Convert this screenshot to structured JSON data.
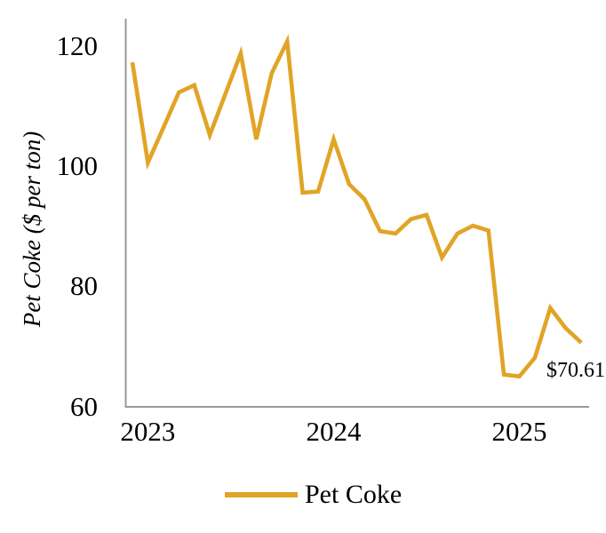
{
  "colors": {
    "line": "#E1A426",
    "axis": "#999999",
    "text": "#000000"
  },
  "annotation": {
    "label": "$70.61"
  },
  "chart_data": {
    "type": "line",
    "title": "",
    "xlabel": "",
    "ylabel": "Pet Coke ($ per ton)",
    "ylim": [
      60,
      125
    ],
    "yticks": [
      120,
      100,
      80,
      60
    ],
    "xticks": [
      {
        "label": "2023",
        "month": "Jan 2023"
      },
      {
        "label": "2024",
        "month": "Jan 2024"
      },
      {
        "label": "2025",
        "month": "Jan 2025"
      }
    ],
    "grid": false,
    "legend_position": "bottom",
    "annotation": "$70.61",
    "x": [
      "Dec 2022",
      "Jan 2023",
      "Feb 2023",
      "Mar 2023",
      "Apr 2023",
      "May 2023",
      "Jun 2023",
      "Jul 2023",
      "Aug 2023",
      "Sep 2023",
      "Oct 2023",
      "Nov 2023",
      "Dec 2023",
      "Jan 2024",
      "Feb 2024",
      "Mar 2024",
      "Apr 2024",
      "May 2024",
      "Jun 2024",
      "Jul 2024",
      "Aug 2024",
      "Sep 2024",
      "Oct 2024",
      "Nov 2024",
      "Dec 2024",
      "Jan 2025",
      "Feb 2025",
      "Mar 2025",
      "Apr 2025",
      "May 2025"
    ],
    "series": [
      {
        "name": "Pet Coke",
        "color": "#E1A426",
        "values": [
          117.3,
          100.6,
          106.4,
          112.3,
          113.5,
          105.2,
          112.0,
          118.8,
          104.5,
          115.5,
          120.8,
          95.6,
          95.8,
          104.5,
          97.0,
          94.5,
          89.2,
          88.8,
          91.2,
          91.9,
          84.8,
          88.8,
          90.1,
          89.3,
          65.3,
          65.0,
          68.1,
          76.4,
          73.0,
          70.61
        ]
      }
    ]
  }
}
